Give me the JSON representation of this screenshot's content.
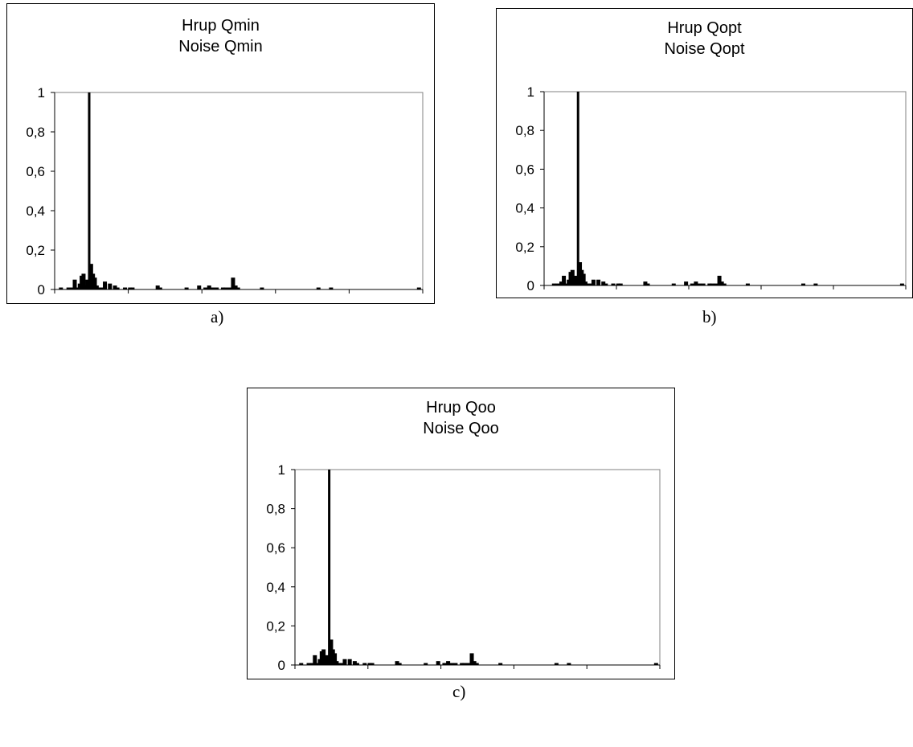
{
  "chart_data": [
    {
      "type": "bar",
      "title": "Hrup Qmin",
      "subtitle": "Noise Qmin",
      "caption": "a)",
      "xlabel": "",
      "ylabel": "",
      "xlim": [
        0,
        2930
      ],
      "ylim": [
        0,
        1
      ],
      "xticks": [
        "0",
        "586",
        "1172",
        "1758",
        "2344",
        "2930"
      ],
      "yticks": [
        "0",
        "0,2",
        "0,4",
        "0,6",
        "0,8",
        "1"
      ],
      "grid": false,
      "x": [
        50,
        110,
        140,
        160,
        180,
        200,
        215,
        230,
        245,
        260,
        275,
        290,
        305,
        320,
        335,
        350,
        380,
        400,
        440,
        480,
        500,
        560,
        600,
        620,
        820,
        840,
        1050,
        1150,
        1200,
        1230,
        1260,
        1290,
        1340,
        1360,
        1390,
        1420,
        1440,
        1460,
        1650,
        2100,
        2200,
        2900
      ],
      "values": [
        0.01,
        0.01,
        0.01,
        0.05,
        0.01,
        0.03,
        0.07,
        0.08,
        0.02,
        0.05,
        1.0,
        0.13,
        0.08,
        0.06,
        0.02,
        0.01,
        0.01,
        0.04,
        0.03,
        0.02,
        0.01,
        0.01,
        0.01,
        0.01,
        0.02,
        0.01,
        0.01,
        0.02,
        0.01,
        0.02,
        0.01,
        0.01,
        0.01,
        0.01,
        0.01,
        0.06,
        0.02,
        0.01,
        0.01,
        0.01,
        0.01,
        0.01
      ]
    },
    {
      "type": "bar",
      "title": "Hrup Qopt",
      "subtitle": "Noise Qopt",
      "caption": "b)",
      "xlabel": "",
      "ylabel": "",
      "xlim": [
        0,
        2930
      ],
      "ylim": [
        0,
        1
      ],
      "xticks": [
        "0",
        "586",
        "1172",
        "1758",
        "2344",
        "2930"
      ],
      "yticks": [
        "0",
        "0,2",
        "0,4",
        "0,6",
        "0,8",
        "1"
      ],
      "grid": false,
      "x": [
        80,
        110,
        140,
        160,
        180,
        200,
        215,
        230,
        245,
        260,
        275,
        290,
        305,
        320,
        335,
        350,
        380,
        400,
        440,
        480,
        500,
        560,
        600,
        620,
        820,
        840,
        1050,
        1150,
        1200,
        1230,
        1260,
        1290,
        1340,
        1360,
        1390,
        1420,
        1440,
        1460,
        1650,
        2100,
        2200,
        2900
      ],
      "values": [
        0.01,
        0.01,
        0.02,
        0.05,
        0.01,
        0.03,
        0.07,
        0.08,
        0.02,
        0.05,
        1.0,
        0.12,
        0.08,
        0.06,
        0.02,
        0.01,
        0.01,
        0.03,
        0.03,
        0.02,
        0.01,
        0.01,
        0.01,
        0.01,
        0.02,
        0.01,
        0.01,
        0.02,
        0.01,
        0.02,
        0.01,
        0.01,
        0.01,
        0.01,
        0.01,
        0.05,
        0.02,
        0.01,
        0.01,
        0.01,
        0.01,
        0.01
      ]
    },
    {
      "type": "bar",
      "title": "Hrup Qoo",
      "subtitle": "Noise Qoo",
      "caption": "c)",
      "xlabel": "",
      "ylabel": "",
      "xlim": [
        0,
        2930
      ],
      "ylim": [
        0,
        1
      ],
      "xticks": [
        "0",
        "586",
        "1172",
        "1758",
        "2344",
        "2930"
      ],
      "yticks": [
        "0",
        "0,2",
        "0,4",
        "0,6",
        "0,8",
        "1"
      ],
      "grid": false,
      "x": [
        50,
        110,
        140,
        160,
        180,
        200,
        215,
        230,
        245,
        260,
        275,
        290,
        305,
        320,
        335,
        350,
        380,
        400,
        440,
        480,
        500,
        560,
        600,
        620,
        820,
        840,
        1050,
        1150,
        1200,
        1230,
        1260,
        1290,
        1340,
        1360,
        1390,
        1420,
        1440,
        1460,
        1650,
        2100,
        2200,
        2900
      ],
      "values": [
        0.01,
        0.01,
        0.01,
        0.05,
        0.01,
        0.03,
        0.07,
        0.08,
        0.02,
        0.05,
        1.0,
        0.13,
        0.08,
        0.06,
        0.02,
        0.01,
        0.01,
        0.03,
        0.03,
        0.02,
        0.01,
        0.01,
        0.01,
        0.01,
        0.02,
        0.01,
        0.01,
        0.02,
        0.01,
        0.02,
        0.01,
        0.01,
        0.01,
        0.01,
        0.01,
        0.06,
        0.02,
        0.01,
        0.01,
        0.01,
        0.01,
        0.01
      ]
    }
  ]
}
